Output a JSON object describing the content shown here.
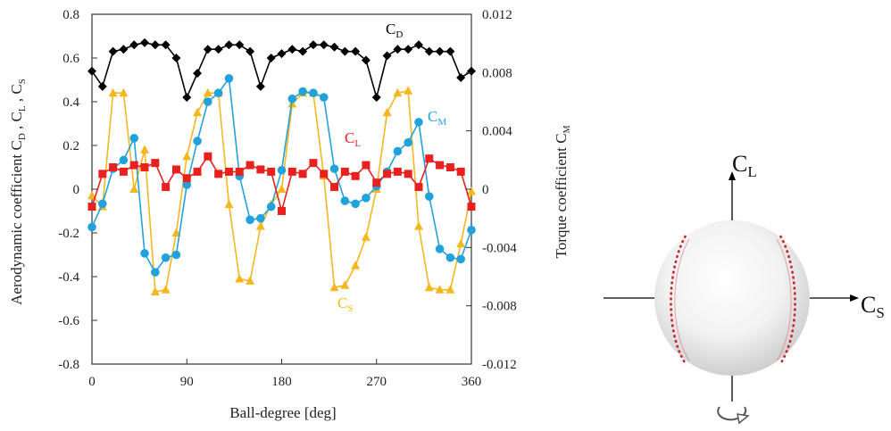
{
  "chart_data": {
    "type": "line",
    "x_ticks": [
      "0",
      "90",
      "180",
      "270",
      "360"
    ],
    "y_left_ticks": [
      "0.8",
      "0.6",
      "0.4",
      "0.2",
      "0",
      "-0.2",
      "-0.4",
      "-0.6",
      "-0.8"
    ],
    "y_right_ticks": [
      "0.012",
      "0.008",
      "0.004",
      "0",
      "-0.004",
      "-0.008",
      "-0.012"
    ],
    "xlabel": "Ball-degree [deg]",
    "ylabel_left": {
      "main": "Aerodynamic coefficient C",
      "sub1": "D",
      "sep1": " , C",
      "sub2": "L",
      "sep2": " , C",
      "sub3": "S"
    },
    "ylabel_right": {
      "main": "Torque coefficient C",
      "sub": "M"
    },
    "xlim": [
      0,
      360
    ],
    "ylim_left": [
      -0.8,
      0.8
    ],
    "ylim_right": [
      -0.012,
      0.012
    ],
    "grid": false,
    "series": [
      {
        "name": "C_D",
        "label_main": "C",
        "label_sub": "D",
        "axis": "left",
        "color": "#000000",
        "marker": "diamond",
        "x": [
          0,
          10,
          20,
          30,
          40,
          50,
          60,
          70,
          80,
          90,
          100,
          110,
          120,
          130,
          140,
          150,
          160,
          170,
          180,
          190,
          200,
          210,
          220,
          230,
          240,
          250,
          260,
          270,
          280,
          290,
          300,
          310,
          320,
          330,
          340,
          350,
          360
        ],
        "y": [
          0.54,
          0.47,
          0.63,
          0.64,
          0.66,
          0.67,
          0.66,
          0.66,
          0.6,
          0.42,
          0.53,
          0.64,
          0.64,
          0.66,
          0.66,
          0.63,
          0.47,
          0.6,
          0.62,
          0.64,
          0.63,
          0.66,
          0.66,
          0.65,
          0.63,
          0.63,
          0.59,
          0.42,
          0.61,
          0.64,
          0.64,
          0.66,
          0.63,
          0.63,
          0.63,
          0.51,
          0.54
        ]
      },
      {
        "name": "C_L",
        "label_main": "C",
        "label_sub": "L",
        "axis": "left",
        "color": "#e8201e",
        "marker": "square",
        "x": [
          0,
          10,
          20,
          30,
          40,
          50,
          60,
          70,
          80,
          90,
          100,
          110,
          120,
          130,
          140,
          150,
          160,
          170,
          180,
          190,
          200,
          210,
          220,
          230,
          240,
          250,
          260,
          270,
          280,
          290,
          300,
          310,
          320,
          330,
          340,
          350,
          360
        ],
        "y": [
          -0.08,
          0.07,
          0.1,
          0.08,
          0.11,
          0.1,
          0.12,
          0.01,
          0.09,
          0.05,
          0.08,
          0.15,
          0.07,
          0.08,
          0.08,
          0.11,
          0.09,
          0.08,
          -0.1,
          0.08,
          0.07,
          0.12,
          0.07,
          0.01,
          0.08,
          0.06,
          0.11,
          0.03,
          0.07,
          0.08,
          0.07,
          0.01,
          0.14,
          0.11,
          0.1,
          0.08,
          -0.08
        ]
      },
      {
        "name": "C_S",
        "label_main": "C",
        "label_sub": "S",
        "axis": "left",
        "color": "#f5b71f",
        "marker": "triangle",
        "x": [
          0,
          10,
          20,
          30,
          40,
          50,
          60,
          70,
          80,
          90,
          100,
          110,
          120,
          130,
          140,
          150,
          160,
          170,
          180,
          190,
          200,
          210,
          220,
          230,
          240,
          250,
          260,
          270,
          280,
          290,
          300,
          310,
          320,
          330,
          340,
          350,
          360
        ],
        "y": [
          -0.03,
          -0.08,
          0.44,
          0.44,
          0.0,
          0.18,
          -0.47,
          -0.46,
          -0.2,
          0.15,
          0.35,
          0.44,
          0.44,
          -0.07,
          -0.41,
          -0.42,
          -0.17,
          -0.07,
          0.0,
          0.39,
          0.44,
          0.44,
          0.06,
          -0.45,
          -0.44,
          -0.35,
          -0.22,
          0.0,
          0.35,
          0.44,
          0.45,
          -0.17,
          -0.45,
          -0.46,
          -0.46,
          -0.25,
          -0.01
        ]
      },
      {
        "name": "C_M",
        "label_main": "C",
        "label_sub": "M",
        "axis": "right",
        "color": "#22a2dc",
        "marker": "circle",
        "x": [
          0,
          10,
          20,
          30,
          40,
          50,
          60,
          70,
          80,
          90,
          100,
          110,
          120,
          130,
          140,
          150,
          160,
          170,
          180,
          190,
          200,
          210,
          220,
          230,
          240,
          250,
          260,
          270,
          280,
          290,
          300,
          310,
          320,
          330,
          340,
          350,
          360
        ],
        "y": [
          -0.0026,
          -0.001,
          0.0014,
          0.002,
          0.0035,
          -0.0044,
          -0.0057,
          -0.0047,
          -0.0045,
          0.0003,
          0.0033,
          0.006,
          0.0066,
          0.0076,
          0.0009,
          -0.0021,
          -0.002,
          -0.0012,
          0.0013,
          0.0062,
          0.0067,
          0.0066,
          0.0063,
          0.0014,
          -0.0008,
          -0.001,
          -0.0006,
          0.0002,
          0.0012,
          0.0026,
          0.0032,
          0.0046,
          -0.0005,
          -0.0041,
          -0.0047,
          -0.0048,
          -0.0028
        ]
      }
    ]
  },
  "ball": {
    "cl_label": {
      "main": "C",
      "sub": "L"
    },
    "cs_label": {
      "main": "C",
      "sub": "S"
    }
  }
}
